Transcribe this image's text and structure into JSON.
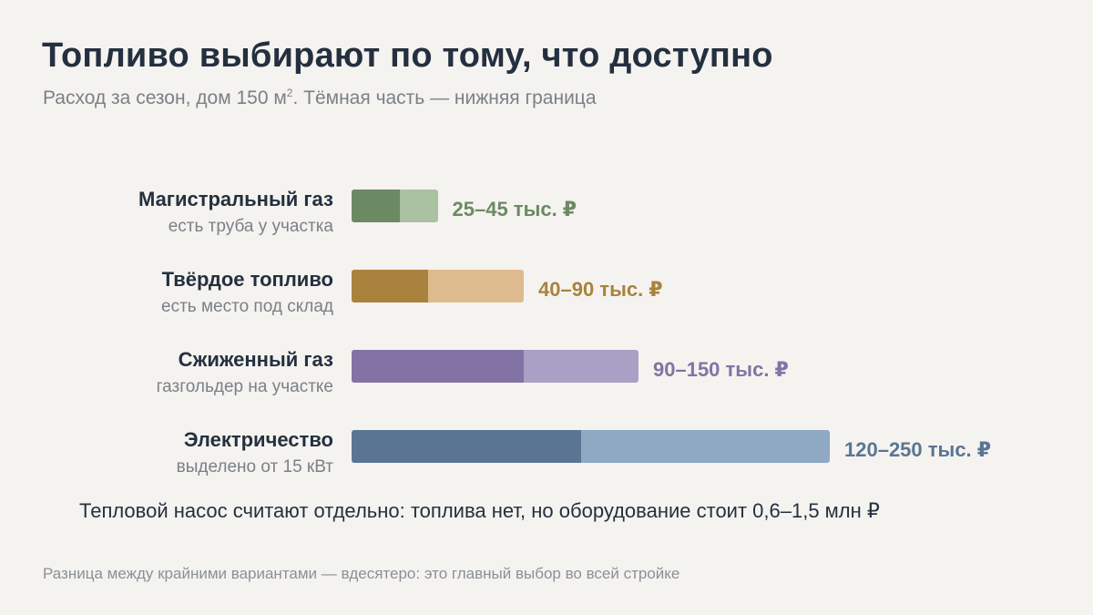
{
  "header": {
    "title": "Топливо выбирают по тому, что доступно",
    "subtitle_main": "Расход за сезон, дом 150 м",
    "subtitle_sup": "2",
    "subtitle_rest": ". Тёмная часть — нижняя граница"
  },
  "chart_data": {
    "type": "bar",
    "orientation": "horizontal",
    "unit": "тыс. ₽",
    "xlim": [
      0,
      250
    ],
    "grid": false,
    "categories": [
      "Магистральный газ",
      "Твёрдое топливо",
      "Сжиженный газ",
      "Электричество"
    ],
    "notes": [
      "есть труба у участка",
      "есть место под склад",
      "газгольдер на участке",
      "выделено от 15 кВт"
    ],
    "low": [
      25,
      40,
      90,
      120
    ],
    "high": [
      45,
      90,
      150,
      250
    ],
    "value_labels": [
      "25–45 тыс. ₽",
      "40–90 тыс. ₽",
      "90–150 тыс. ₽",
      "120–250 тыс. ₽"
    ],
    "colors_dark": [
      "#6b8a64",
      "#a9833e",
      "#8373a5",
      "#5a7594"
    ],
    "colors_light": [
      "#aac1a2",
      "#ddbb8f",
      "#aa9fc5",
      "#8fa8c3"
    ],
    "label_colors": [
      "#6b8a64",
      "#a9833e",
      "#8373a5",
      "#5a7594"
    ]
  },
  "note": "Тепловой насос считают отдельно: топлива нет, но оборудование стоит 0,6–1,5 млн ₽",
  "footer": "Разница между крайними вариантами — вдесятеро: это главный выбор во всей стройке"
}
